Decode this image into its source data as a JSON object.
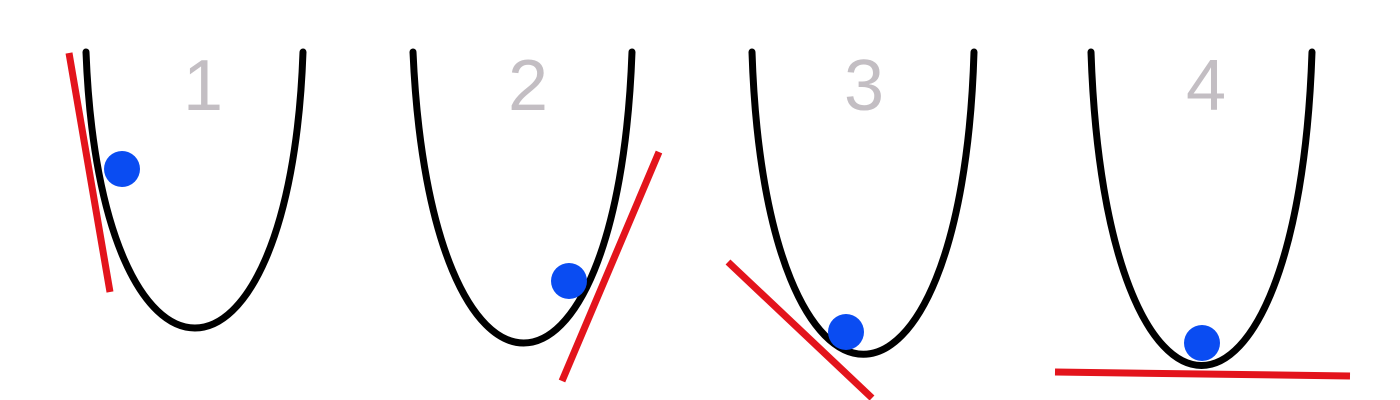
{
  "colors": {
    "background": "#ffffff",
    "curve": "#000000",
    "tangent": "#e3141c",
    "ball": "#0a4cf2",
    "number": "#c3bec3"
  },
  "panels": [
    {
      "number": "1"
    },
    {
      "number": "2"
    },
    {
      "number": "3"
    },
    {
      "number": "4"
    }
  ]
}
